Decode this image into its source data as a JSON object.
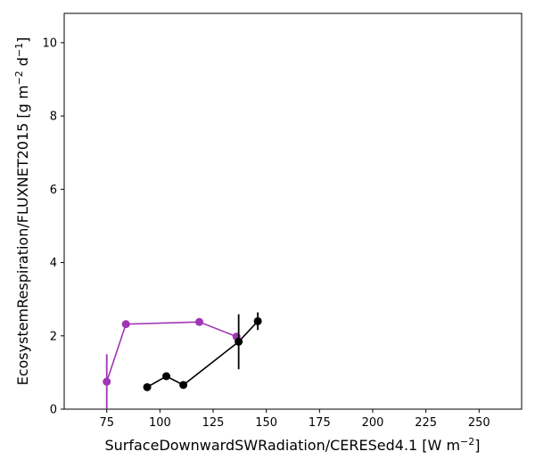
{
  "chart_data": {
    "type": "line",
    "xlabel": "SurfaceDownwardSWRadiation/CERESed4.1 [W m$^{-2}$]",
    "ylabel": "EcosystemRespiration/FLUXNET2015 [g m$^{-2}$ d$^{-1}$]",
    "xlabel_base": "SurfaceDownwardSWRadiation/CERESed4.1 [W m",
    "xlabel_sup": "−2",
    "xlabel_end": "]",
    "ylabel_base": "EcosystemRespiration/FLUXNET2015 [g m",
    "ylabel_sup1": "−2",
    "ylabel_mid": " d",
    "ylabel_sup2": "−1",
    "ylabel_end": "]",
    "xlim": [
      55,
      270
    ],
    "ylim": [
      0,
      10.8
    ],
    "x_ticks": [
      75,
      100,
      125,
      150,
      175,
      200,
      225,
      250
    ],
    "y_ticks": [
      0,
      2,
      4,
      6,
      8,
      10
    ],
    "x_tick_labels": [
      "75",
      "100",
      "125",
      "150",
      "175",
      "200",
      "225",
      "250"
    ],
    "y_tick_labels": [
      "0",
      "2",
      "4",
      "6",
      "8",
      "10"
    ],
    "grid": false,
    "series": [
      {
        "color": "#a035b5",
        "points": [
          {
            "x": 75,
            "y": 0.75,
            "err": 0.75
          },
          {
            "x": 84,
            "y": 2.32,
            "err": 0
          },
          {
            "x": 118.5,
            "y": 2.38,
            "err": 0
          },
          {
            "x": 136,
            "y": 1.98,
            "err": 0
          }
        ]
      },
      {
        "color": "#000000",
        "points": [
          {
            "x": 94,
            "y": 0.6,
            "err": 0
          },
          {
            "x": 103,
            "y": 0.9,
            "err": 0
          },
          {
            "x": 111,
            "y": 0.66,
            "err": 0
          },
          {
            "x": 137,
            "y": 1.84,
            "err": 0.75
          },
          {
            "x": 146,
            "y": 2.4,
            "err": 0.24
          }
        ]
      }
    ]
  }
}
